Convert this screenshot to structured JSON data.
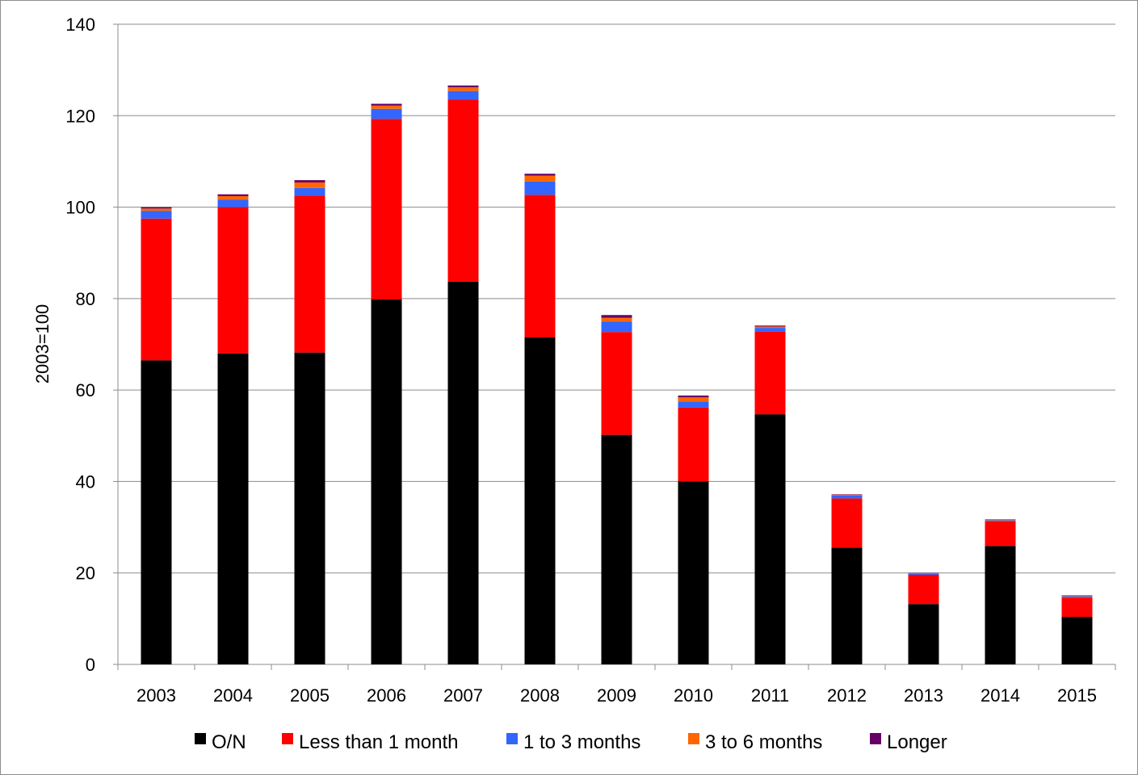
{
  "chart_data": {
    "type": "bar",
    "stacked": true,
    "title": "",
    "xlabel": "",
    "ylabel": "2003=100",
    "ylim": [
      0,
      140
    ],
    "yticks": [
      0,
      20,
      40,
      60,
      80,
      100,
      120,
      140
    ],
    "grid": true,
    "legend_position": "bottom",
    "categories": [
      "2003",
      "2004",
      "2005",
      "2006",
      "2007",
      "2008",
      "2009",
      "2010",
      "2011",
      "2012",
      "2013",
      "2014",
      "2015"
    ],
    "series": [
      {
        "name": "O/N",
        "color": "#000000",
        "values": [
          66.5,
          68,
          68.2,
          79.8,
          83.7,
          71.5,
          50.2,
          40,
          54.7,
          25.5,
          13.2,
          25.9,
          10.4
        ]
      },
      {
        "name": "Less than 1 month",
        "color": "#ff0000",
        "values": [
          31,
          32,
          34.3,
          39.5,
          39.8,
          31.2,
          22.5,
          16.2,
          18.1,
          10.8,
          6.4,
          5.4,
          4.2
        ]
      },
      {
        "name": "1 to 3 months",
        "color": "#3366ff",
        "values": [
          1.7,
          1.6,
          1.7,
          2.2,
          1.9,
          2.9,
          2.3,
          1.3,
          0.8,
          0.6,
          0.2,
          0.2,
          0.3
        ]
      },
      {
        "name": "3 to 6 months",
        "color": "#ff6600",
        "values": [
          0.5,
          0.8,
          1.2,
          0.7,
          0.8,
          1.3,
          0.8,
          0.9,
          0.3,
          0.2,
          0.1,
          0.1,
          0.1
        ]
      },
      {
        "name": "Longer",
        "color": "#660066",
        "values": [
          0.3,
          0.4,
          0.5,
          0.4,
          0.4,
          0.4,
          0.6,
          0.4,
          0.2,
          0.1,
          0.1,
          0.1,
          0.1
        ]
      }
    ]
  }
}
